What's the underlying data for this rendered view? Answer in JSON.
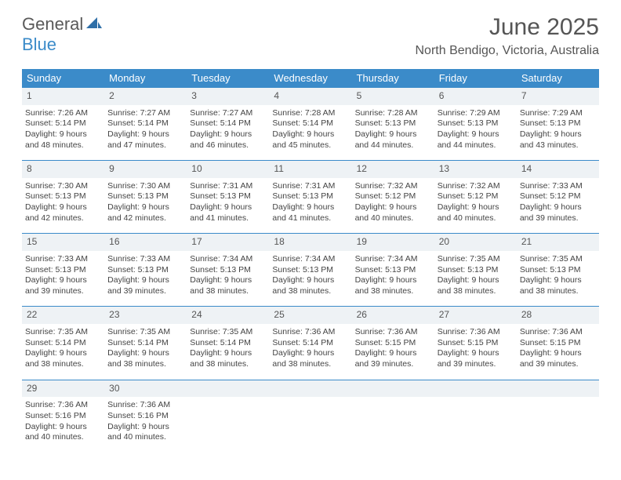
{
  "logo": {
    "part1": "General",
    "part2": "Blue"
  },
  "header": {
    "month_title": "June 2025",
    "location": "North Bendigo, Victoria, Australia"
  },
  "colors": {
    "header_bg": "#3b8bc9",
    "daynum_bg": "#eef2f5",
    "daynum_border": "#3b8bc9",
    "text": "#444444",
    "title_text": "#555555"
  },
  "daynames": [
    "Sunday",
    "Monday",
    "Tuesday",
    "Wednesday",
    "Thursday",
    "Friday",
    "Saturday"
  ],
  "weeks": [
    {
      "nums": [
        "1",
        "2",
        "3",
        "4",
        "5",
        "6",
        "7"
      ],
      "cells": [
        {
          "sunrise": "Sunrise: 7:26 AM",
          "sunset": "Sunset: 5:14 PM",
          "daylight": "Daylight: 9 hours and 48 minutes."
        },
        {
          "sunrise": "Sunrise: 7:27 AM",
          "sunset": "Sunset: 5:14 PM",
          "daylight": "Daylight: 9 hours and 47 minutes."
        },
        {
          "sunrise": "Sunrise: 7:27 AM",
          "sunset": "Sunset: 5:14 PM",
          "daylight": "Daylight: 9 hours and 46 minutes."
        },
        {
          "sunrise": "Sunrise: 7:28 AM",
          "sunset": "Sunset: 5:14 PM",
          "daylight": "Daylight: 9 hours and 45 minutes."
        },
        {
          "sunrise": "Sunrise: 7:28 AM",
          "sunset": "Sunset: 5:13 PM",
          "daylight": "Daylight: 9 hours and 44 minutes."
        },
        {
          "sunrise": "Sunrise: 7:29 AM",
          "sunset": "Sunset: 5:13 PM",
          "daylight": "Daylight: 9 hours and 44 minutes."
        },
        {
          "sunrise": "Sunrise: 7:29 AM",
          "sunset": "Sunset: 5:13 PM",
          "daylight": "Daylight: 9 hours and 43 minutes."
        }
      ]
    },
    {
      "nums": [
        "8",
        "9",
        "10",
        "11",
        "12",
        "13",
        "14"
      ],
      "cells": [
        {
          "sunrise": "Sunrise: 7:30 AM",
          "sunset": "Sunset: 5:13 PM",
          "daylight": "Daylight: 9 hours and 42 minutes."
        },
        {
          "sunrise": "Sunrise: 7:30 AM",
          "sunset": "Sunset: 5:13 PM",
          "daylight": "Daylight: 9 hours and 42 minutes."
        },
        {
          "sunrise": "Sunrise: 7:31 AM",
          "sunset": "Sunset: 5:13 PM",
          "daylight": "Daylight: 9 hours and 41 minutes."
        },
        {
          "sunrise": "Sunrise: 7:31 AM",
          "sunset": "Sunset: 5:13 PM",
          "daylight": "Daylight: 9 hours and 41 minutes."
        },
        {
          "sunrise": "Sunrise: 7:32 AM",
          "sunset": "Sunset: 5:12 PM",
          "daylight": "Daylight: 9 hours and 40 minutes."
        },
        {
          "sunrise": "Sunrise: 7:32 AM",
          "sunset": "Sunset: 5:12 PM",
          "daylight": "Daylight: 9 hours and 40 minutes."
        },
        {
          "sunrise": "Sunrise: 7:33 AM",
          "sunset": "Sunset: 5:12 PM",
          "daylight": "Daylight: 9 hours and 39 minutes."
        }
      ]
    },
    {
      "nums": [
        "15",
        "16",
        "17",
        "18",
        "19",
        "20",
        "21"
      ],
      "cells": [
        {
          "sunrise": "Sunrise: 7:33 AM",
          "sunset": "Sunset: 5:13 PM",
          "daylight": "Daylight: 9 hours and 39 minutes."
        },
        {
          "sunrise": "Sunrise: 7:33 AM",
          "sunset": "Sunset: 5:13 PM",
          "daylight": "Daylight: 9 hours and 39 minutes."
        },
        {
          "sunrise": "Sunrise: 7:34 AM",
          "sunset": "Sunset: 5:13 PM",
          "daylight": "Daylight: 9 hours and 38 minutes."
        },
        {
          "sunrise": "Sunrise: 7:34 AM",
          "sunset": "Sunset: 5:13 PM",
          "daylight": "Daylight: 9 hours and 38 minutes."
        },
        {
          "sunrise": "Sunrise: 7:34 AM",
          "sunset": "Sunset: 5:13 PM",
          "daylight": "Daylight: 9 hours and 38 minutes."
        },
        {
          "sunrise": "Sunrise: 7:35 AM",
          "sunset": "Sunset: 5:13 PM",
          "daylight": "Daylight: 9 hours and 38 minutes."
        },
        {
          "sunrise": "Sunrise: 7:35 AM",
          "sunset": "Sunset: 5:13 PM",
          "daylight": "Daylight: 9 hours and 38 minutes."
        }
      ]
    },
    {
      "nums": [
        "22",
        "23",
        "24",
        "25",
        "26",
        "27",
        "28"
      ],
      "cells": [
        {
          "sunrise": "Sunrise: 7:35 AM",
          "sunset": "Sunset: 5:14 PM",
          "daylight": "Daylight: 9 hours and 38 minutes."
        },
        {
          "sunrise": "Sunrise: 7:35 AM",
          "sunset": "Sunset: 5:14 PM",
          "daylight": "Daylight: 9 hours and 38 minutes."
        },
        {
          "sunrise": "Sunrise: 7:35 AM",
          "sunset": "Sunset: 5:14 PM",
          "daylight": "Daylight: 9 hours and 38 minutes."
        },
        {
          "sunrise": "Sunrise: 7:36 AM",
          "sunset": "Sunset: 5:14 PM",
          "daylight": "Daylight: 9 hours and 38 minutes."
        },
        {
          "sunrise": "Sunrise: 7:36 AM",
          "sunset": "Sunset: 5:15 PM",
          "daylight": "Daylight: 9 hours and 39 minutes."
        },
        {
          "sunrise": "Sunrise: 7:36 AM",
          "sunset": "Sunset: 5:15 PM",
          "daylight": "Daylight: 9 hours and 39 minutes."
        },
        {
          "sunrise": "Sunrise: 7:36 AM",
          "sunset": "Sunset: 5:15 PM",
          "daylight": "Daylight: 9 hours and 39 minutes."
        }
      ]
    },
    {
      "nums": [
        "29",
        "30",
        "",
        "",
        "",
        "",
        ""
      ],
      "cells": [
        {
          "sunrise": "Sunrise: 7:36 AM",
          "sunset": "Sunset: 5:16 PM",
          "daylight": "Daylight: 9 hours and 40 minutes."
        },
        {
          "sunrise": "Sunrise: 7:36 AM",
          "sunset": "Sunset: 5:16 PM",
          "daylight": "Daylight: 9 hours and 40 minutes."
        },
        null,
        null,
        null,
        null,
        null
      ]
    }
  ]
}
